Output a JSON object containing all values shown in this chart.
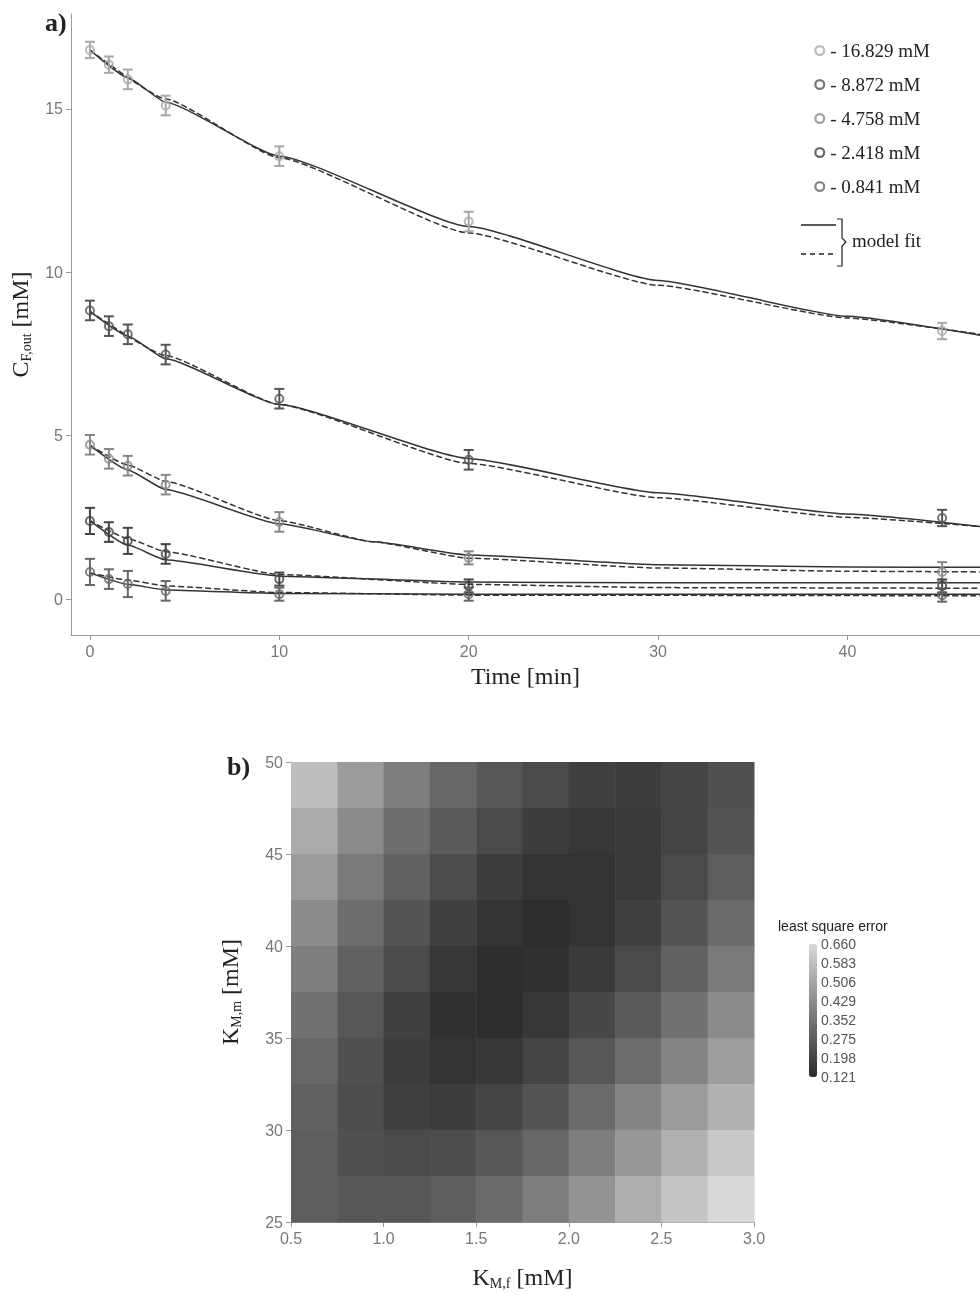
{
  "chart_data": [
    {
      "type": "scatter",
      "title": "a)",
      "xlabel": "Time [min]",
      "ylabel": "C$_{F,out}$ [mM]",
      "xlim": [
        -1,
        47
      ],
      "ylim": [
        -1.1,
        17.9
      ],
      "xticks": [
        0,
        10,
        20,
        30,
        40
      ],
      "yticks": [
        0,
        5,
        10,
        15
      ],
      "legend": "top right",
      "marker": "circle",
      "annotations": [
        "model fit"
      ],
      "series": [
        {
          "name": "- 16.829 mM",
          "color": "#a8a8a8",
          "x": [
            0,
            1,
            2,
            4,
            10,
            20,
            45
          ],
          "values": [
            16.8,
            16.35,
            15.9,
            15.1,
            13.55,
            11.55,
            8.2
          ],
          "errors": [
            0.25,
            0.25,
            0.3,
            0.3,
            0.3,
            0.3,
            0.25
          ]
        },
        {
          "name": "- 8.872 mM",
          "color": "#555555",
          "x": [
            0,
            1,
            2,
            4,
            10,
            20,
            45
          ],
          "values": [
            8.83,
            8.35,
            8.1,
            7.48,
            6.13,
            4.26,
            2.48
          ],
          "errors": [
            0.3,
            0.3,
            0.3,
            0.3,
            0.3,
            0.3,
            0.25
          ]
        },
        {
          "name": "- 4.758 mM",
          "color": "#888888",
          "x": [
            0,
            1,
            2,
            4,
            10,
            20,
            45
          ],
          "values": [
            4.72,
            4.29,
            4.08,
            3.5,
            2.36,
            1.26,
            0.83
          ],
          "errors": [
            0.3,
            0.3,
            0.3,
            0.3,
            0.3,
            0.2,
            0.3
          ]
        },
        {
          "name": "- 2.418 mM",
          "color": "#444444",
          "x": [
            0,
            1,
            2,
            4,
            10,
            20,
            45
          ],
          "values": [
            2.39,
            2.05,
            1.78,
            1.38,
            0.61,
            0.4,
            0.4
          ],
          "errors": [
            0.4,
            0.3,
            0.4,
            0.3,
            0.2,
            0.2,
            0.2
          ]
        },
        {
          "name": "- 0.841 mM",
          "color": "#666666",
          "x": [
            0,
            1,
            2,
            4,
            10,
            20,
            45
          ],
          "values": [
            0.83,
            0.61,
            0.46,
            0.25,
            0.15,
            0.15,
            0.12
          ],
          "errors": [
            0.4,
            0.3,
            0.4,
            0.3,
            0.2,
            0.2,
            0.2
          ]
        },
        {
          "type": "line",
          "color": "#333333",
          "line_style": "solid",
          "marker": "none",
          "x": [
            0,
            2,
            4,
            10,
            20,
            30,
            40,
            47
          ],
          "values": [
            16.8,
            15.95,
            15.2,
            13.55,
            11.4,
            9.75,
            8.65,
            8.07
          ]
        },
        {
          "type": "line",
          "color": "#333333",
          "line_style": "dashed",
          "marker": "none",
          "x": [
            0,
            4,
            10,
            20,
            30,
            40,
            47
          ],
          "values": [
            16.8,
            15.3,
            13.5,
            11.2,
            9.6,
            8.6,
            8.1
          ]
        },
        {
          "type": "line",
          "color": "#333333",
          "line_style": "solid",
          "marker": "none",
          "x": [
            0,
            2,
            4,
            10,
            20,
            30,
            40,
            47
          ],
          "values": [
            8.8,
            8.05,
            7.35,
            5.95,
            4.3,
            3.25,
            2.6,
            2.22
          ]
        },
        {
          "type": "line",
          "color": "#333333",
          "line_style": "dashed",
          "marker": "none",
          "x": [
            0,
            4,
            10,
            20,
            30,
            40,
            47
          ],
          "values": [
            8.8,
            7.45,
            5.95,
            4.15,
            3.1,
            2.5,
            2.22
          ]
        },
        {
          "type": "line",
          "color": "#333333",
          "line_style": "solid",
          "marker": "none",
          "x": [
            0,
            2,
            4,
            10,
            15,
            20,
            30,
            40,
            47
          ],
          "values": [
            4.7,
            3.95,
            3.35,
            2.3,
            1.75,
            1.35,
            1.05,
            0.98,
            0.97
          ]
        },
        {
          "type": "line",
          "color": "#333333",
          "line_style": "dashed",
          "marker": "none",
          "x": [
            0,
            2,
            4,
            10,
            15,
            20,
            30,
            40,
            47
          ],
          "values": [
            4.7,
            4.1,
            3.6,
            2.4,
            1.75,
            1.25,
            0.95,
            0.85,
            0.83
          ]
        },
        {
          "type": "line",
          "color": "#333333",
          "line_style": "solid",
          "marker": "none",
          "x": [
            0,
            2,
            4,
            10,
            20,
            30,
            47
          ],
          "values": [
            2.4,
            1.65,
            1.2,
            0.7,
            0.52,
            0.5,
            0.5
          ]
        },
        {
          "type": "line",
          "color": "#333333",
          "line_style": "dashed",
          "marker": "none",
          "x": [
            0,
            2,
            4,
            10,
            20,
            30,
            47
          ],
          "values": [
            2.4,
            1.85,
            1.45,
            0.75,
            0.45,
            0.35,
            0.33
          ]
        },
        {
          "type": "line",
          "color": "#333333",
          "line_style": "solid",
          "marker": "none",
          "x": [
            0,
            2,
            4,
            10,
            20,
            47
          ],
          "values": [
            0.8,
            0.45,
            0.28,
            0.17,
            0.15,
            0.15
          ]
        },
        {
          "type": "line",
          "color": "#333333",
          "line_style": "dashed",
          "marker": "none",
          "x": [
            0,
            2,
            4,
            10,
            20,
            47
          ],
          "values": [
            0.8,
            0.58,
            0.4,
            0.2,
            0.12,
            0.1
          ]
        }
      ]
    },
    {
      "type": "heatmap",
      "title": "b)",
      "xlabel": "K$_{M,f}$ [mM]",
      "ylabel": "K$_{M,m}$ [mM]",
      "clabel": "least square error",
      "xlim": [
        0.5,
        3.0
      ],
      "ylim": [
        25,
        50
      ],
      "xticks": [
        {
          "value": 0.5,
          "label": "0.5"
        },
        {
          "value": 1,
          "label": "1.0"
        },
        {
          "value": 1.5,
          "label": "1.5"
        },
        {
          "value": 2,
          "label": "2.0"
        },
        {
          "value": 2.5,
          "label": "2.5"
        },
        {
          "value": 3,
          "label": "3.0"
        }
      ],
      "yticks": [
        25,
        30,
        35,
        40,
        45,
        50
      ],
      "clim": [
        0.121,
        0.66
      ],
      "cticks": [
        {
          "value": 0.121,
          "label": "0.121"
        },
        {
          "value": 0.198,
          "label": "0.198"
        },
        {
          "value": 0.275,
          "label": "0.275"
        },
        {
          "value": 0.352,
          "label": "0.352"
        },
        {
          "value": 0.429,
          "label": "0.429"
        },
        {
          "value": 0.506,
          "label": "0.506"
        },
        {
          "value": 0.583,
          "label": "0.583"
        },
        {
          "value": 0.66,
          "label": "0.660"
        }
      ],
      "x": [
        0.625,
        0.875,
        1.125,
        1.375,
        1.625,
        1.875,
        2.125,
        2.375,
        2.625,
        2.875
      ],
      "y": [
        48.75,
        46.25,
        43.75,
        41.25,
        38.75,
        36.25,
        33.75,
        31.25,
        28.75,
        26.25
      ],
      "cells": [
        [
          0.58,
          0.47,
          0.38,
          0.31,
          0.26,
          0.22,
          0.19,
          0.18,
          0.2,
          0.24
        ],
        [
          0.52,
          0.42,
          0.33,
          0.27,
          0.22,
          0.18,
          0.16,
          0.17,
          0.2,
          0.25
        ],
        [
          0.47,
          0.37,
          0.29,
          0.23,
          0.18,
          0.15,
          0.15,
          0.17,
          0.22,
          0.28
        ],
        [
          0.42,
          0.33,
          0.25,
          0.19,
          0.15,
          0.13,
          0.15,
          0.19,
          0.25,
          0.32
        ],
        [
          0.38,
          0.29,
          0.22,
          0.16,
          0.13,
          0.14,
          0.17,
          0.22,
          0.29,
          0.37
        ],
        [
          0.34,
          0.26,
          0.19,
          0.14,
          0.13,
          0.16,
          0.21,
          0.27,
          0.34,
          0.42
        ],
        [
          0.31,
          0.24,
          0.18,
          0.15,
          0.16,
          0.2,
          0.26,
          0.33,
          0.4,
          0.48
        ],
        [
          0.29,
          0.23,
          0.19,
          0.18,
          0.2,
          0.25,
          0.32,
          0.4,
          0.47,
          0.54
        ],
        [
          0.28,
          0.24,
          0.22,
          0.23,
          0.26,
          0.31,
          0.38,
          0.46,
          0.54,
          0.61
        ],
        [
          0.28,
          0.26,
          0.26,
          0.28,
          0.32,
          0.38,
          0.45,
          0.53,
          0.6,
          0.66
        ]
      ]
    }
  ]
}
